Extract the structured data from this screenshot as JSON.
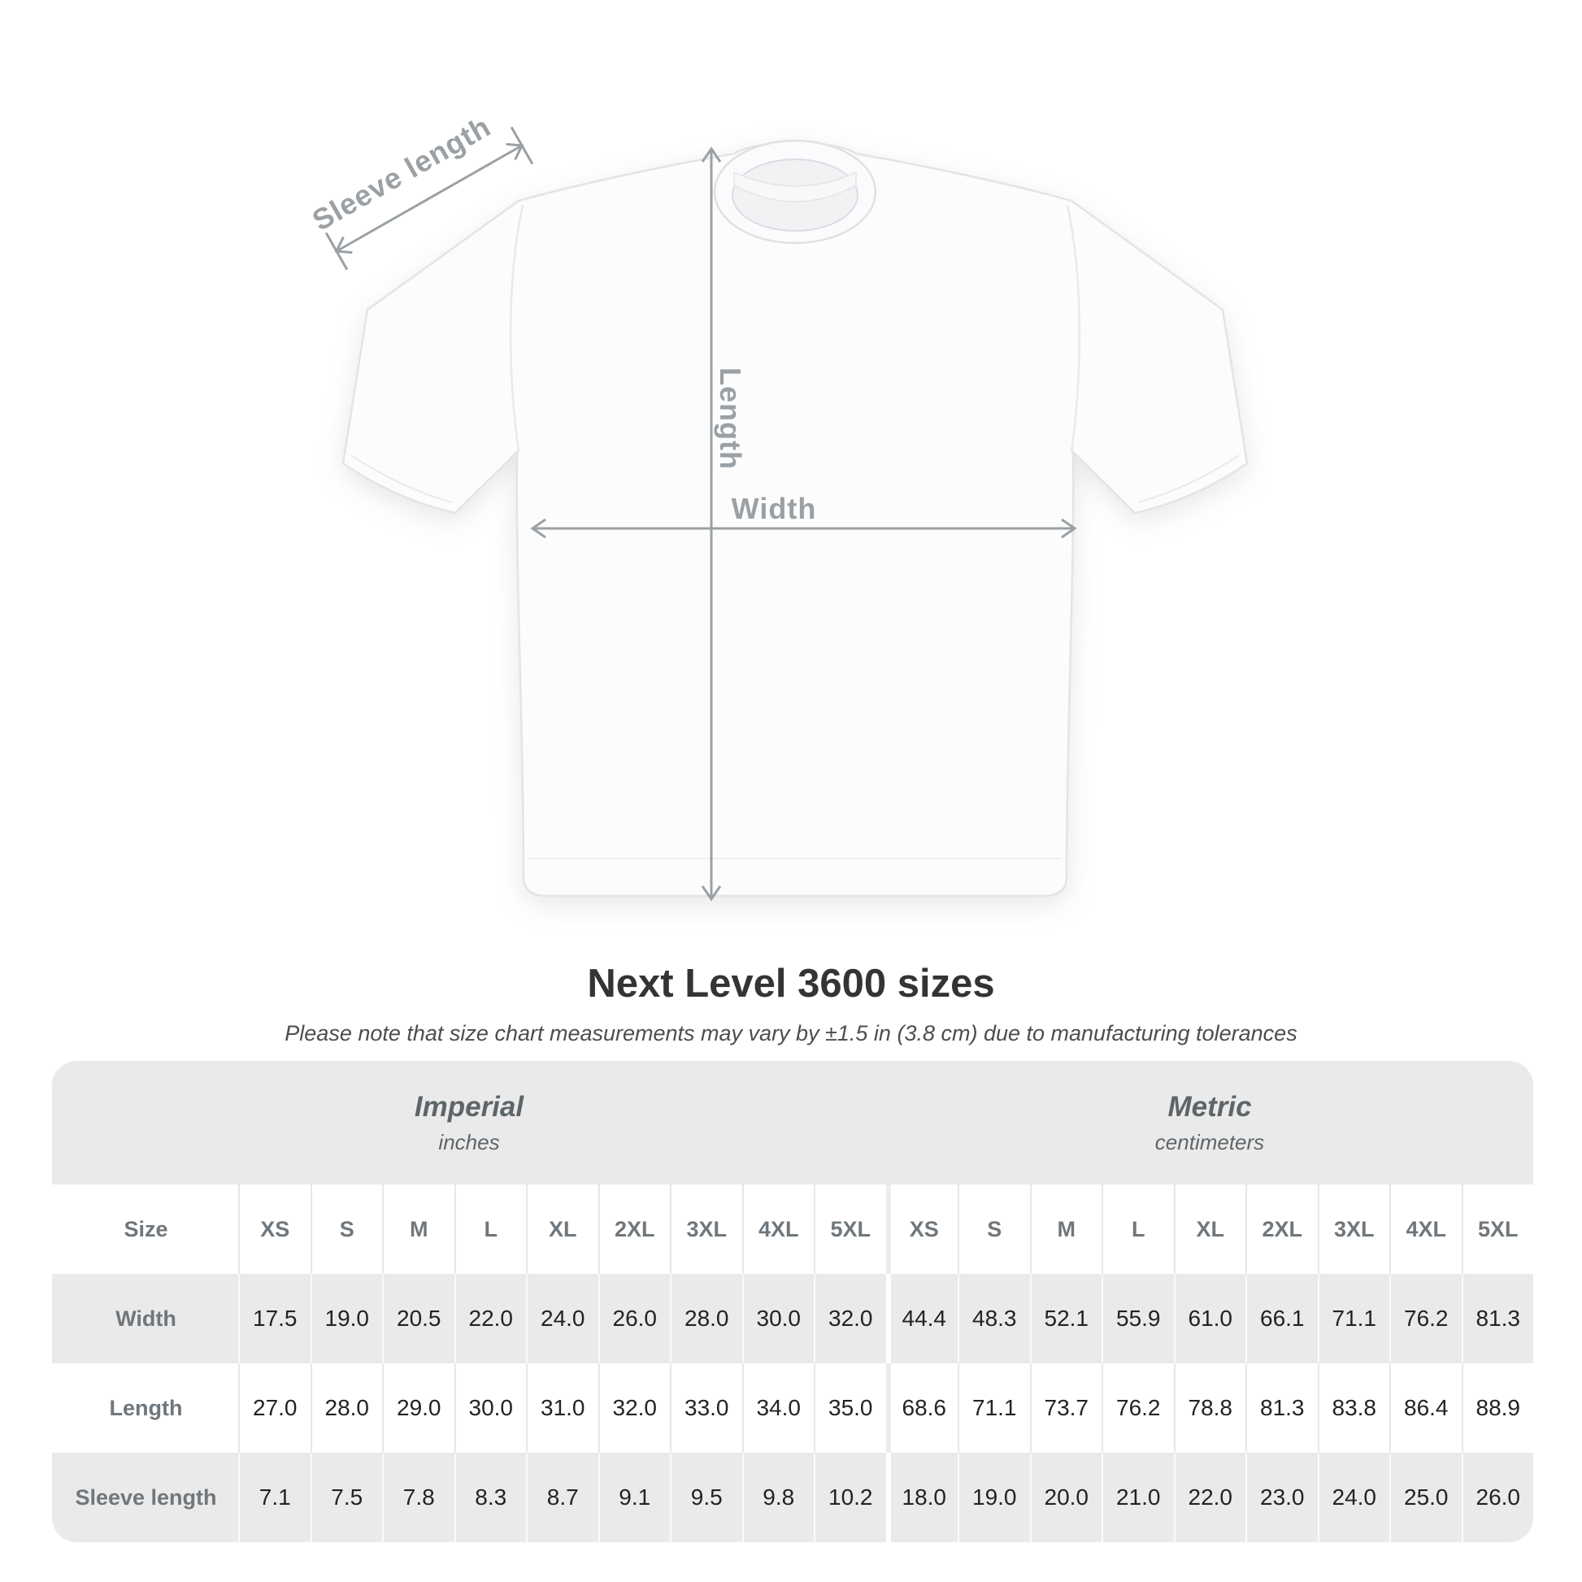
{
  "title": "Next Level 3600 sizes",
  "subtitle": "Please note that size chart measurements may vary by ±1.5 in (3.8 cm) due to manufacturing tolerances",
  "diagram": {
    "sleeve_label": "Sleeve length",
    "length_label": "Length",
    "width_label": "Width"
  },
  "colors": {
    "measure_gray": "#9aa0a4",
    "table_background": "#eaeaeb",
    "header_text": "#70777c",
    "value_text": "#222326"
  },
  "table": {
    "imperial": {
      "title": "Imperial",
      "subtitle": "inches"
    },
    "metric": {
      "title": "Metric",
      "subtitle": "centimeters"
    },
    "size_header_label": "Size",
    "sizes_imperial": [
      "XS",
      "S",
      "M",
      "L",
      "XL",
      "2XL",
      "3XL",
      "4XL",
      "5XL"
    ],
    "sizes_metric": [
      "XS",
      "S",
      "M",
      "L",
      "XL",
      "2XL",
      "3XL",
      "4XL",
      "5XL"
    ],
    "rows": [
      {
        "label": "Width",
        "imperial": [
          "17.5",
          "19.0",
          "20.5",
          "22.0",
          "24.0",
          "26.0",
          "28.0",
          "30.0",
          "32.0"
        ],
        "metric": [
          "44.4",
          "48.3",
          "52.1",
          "55.9",
          "61.0",
          "66.1",
          "71.1",
          "76.2",
          "81.3"
        ]
      },
      {
        "label": "Length",
        "imperial": [
          "27.0",
          "28.0",
          "29.0",
          "30.0",
          "31.0",
          "32.0",
          "33.0",
          "34.0",
          "35.0"
        ],
        "metric": [
          "68.6",
          "71.1",
          "73.7",
          "76.2",
          "78.8",
          "81.3",
          "83.8",
          "86.4",
          "88.9"
        ]
      },
      {
        "label": "Sleeve length",
        "imperial": [
          "7.1",
          "7.5",
          "7.8",
          "8.3",
          "8.7",
          "9.1",
          "9.5",
          "9.8",
          "10.2"
        ],
        "metric": [
          "18.0",
          "19.0",
          "20.0",
          "21.0",
          "22.0",
          "23.0",
          "24.0",
          "25.0",
          "26.0"
        ]
      }
    ]
  }
}
